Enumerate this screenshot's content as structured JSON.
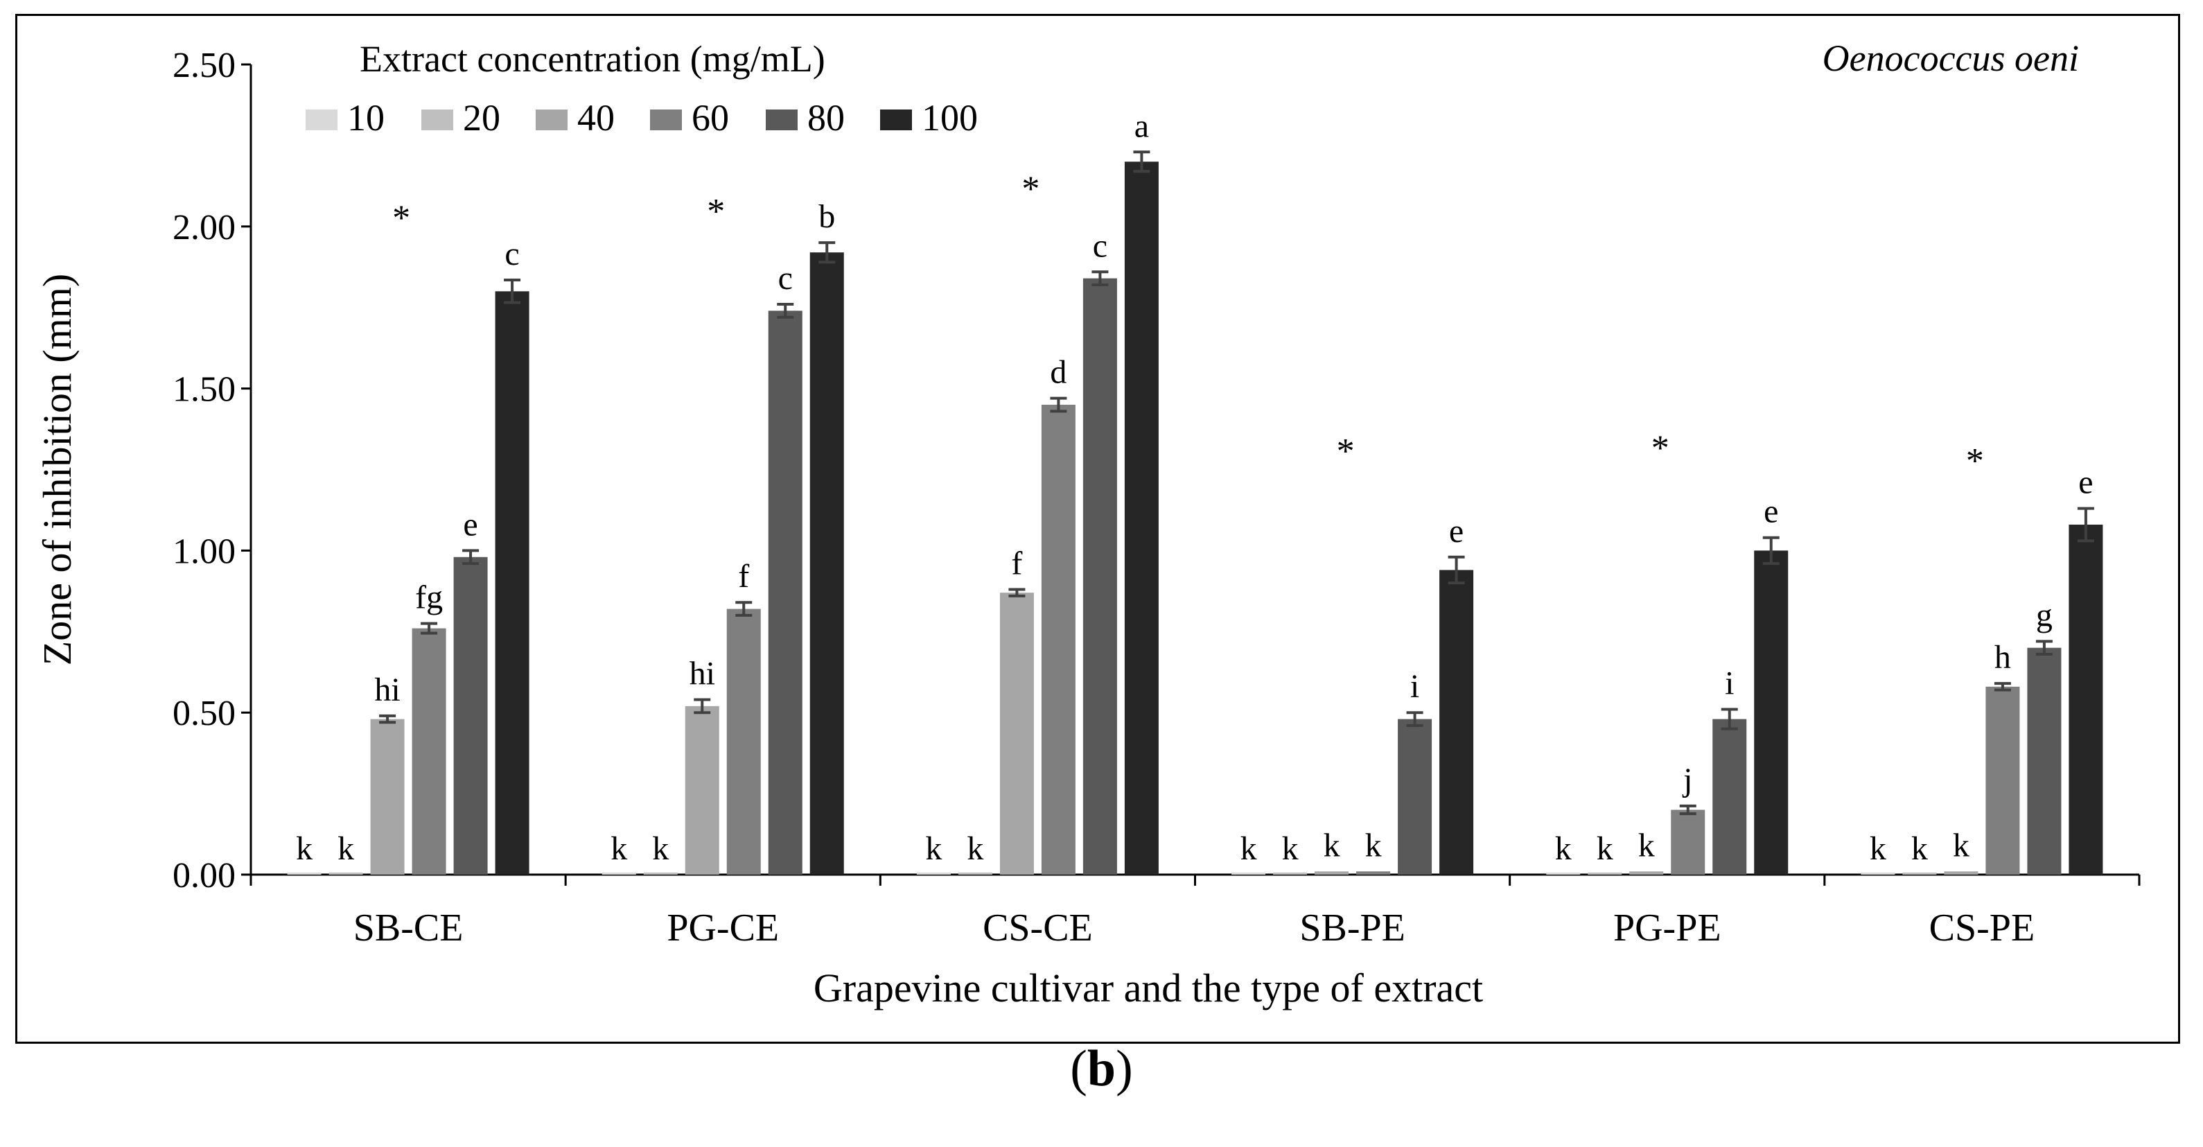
{
  "chart_data": {
    "type": "bar",
    "title": "",
    "organism": "Oenococcus oeni",
    "xlabel": "Grapevine cultivar and the type of extract",
    "ylabel": "Zone of inhibition (mm)",
    "ylim": [
      0,
      2.5
    ],
    "yticks": [
      "0.00",
      "0.50",
      "1.00",
      "1.50",
      "2.00",
      "2.50"
    ],
    "legend_title": "Extract concentration (mg/mL)",
    "legend_position": "top-left",
    "categories": [
      "SB-CE",
      "PG-CE",
      "CS-CE",
      "SB-PE",
      "PG-PE",
      "CS-PE"
    ],
    "series": [
      {
        "name": "10",
        "color": "#d9d9d9",
        "values": [
          0.0,
          0.0,
          0.0,
          0.0,
          0.0,
          0.0
        ],
        "errors": [
          0,
          0,
          0,
          0,
          0,
          0
        ],
        "letters": [
          "k",
          "k",
          "k",
          "k",
          "k",
          "k"
        ]
      },
      {
        "name": "20",
        "color": "#bfbfbf",
        "values": [
          0.0,
          0.0,
          0.0,
          0.0,
          0.0,
          0.0
        ],
        "errors": [
          0,
          0,
          0,
          0,
          0,
          0
        ],
        "letters": [
          "k",
          "k",
          "k",
          "k",
          "k",
          "k"
        ]
      },
      {
        "name": "40",
        "color": "#a6a6a6",
        "values": [
          0.48,
          0.52,
          0.87,
          0.01,
          0.01,
          0.01
        ],
        "errors": [
          0.01,
          0.02,
          0.01,
          0,
          0,
          0
        ],
        "letters": [
          "hi",
          "hi",
          "f",
          "k",
          "k",
          "k"
        ]
      },
      {
        "name": "60",
        "color": "#7f7f7f",
        "values": [
          0.76,
          0.82,
          1.45,
          0.01,
          0.2,
          0.58
        ],
        "errors": [
          0.015,
          0.02,
          0.02,
          0,
          0.012,
          0.01
        ],
        "letters": [
          "fg",
          "f",
          "d",
          "k",
          "j",
          "h"
        ]
      },
      {
        "name": "80",
        "color": "#595959",
        "values": [
          0.98,
          1.74,
          1.84,
          0.48,
          0.48,
          0.7
        ],
        "errors": [
          0.02,
          0.02,
          0.02,
          0.02,
          0.03,
          0.02
        ],
        "letters": [
          "e",
          "c",
          "c",
          "i",
          "i",
          "g"
        ]
      },
      {
        "name": "100",
        "color": "#262626",
        "values": [
          1.8,
          1.92,
          2.2,
          0.94,
          1.0,
          1.08
        ],
        "errors": [
          0.035,
          0.03,
          0.03,
          0.04,
          0.04,
          0.05
        ],
        "letters": [
          "c",
          "b",
          "a",
          "e",
          "e",
          "e"
        ]
      }
    ],
    "annotations": [
      {
        "text": "*",
        "category": "SB-CE",
        "y": 2.05
      },
      {
        "text": "*",
        "category": "PG-CE",
        "y": 2.07
      },
      {
        "text": "*",
        "category": "CS-CE",
        "y": 2.14
      },
      {
        "text": "*",
        "category": "SB-PE",
        "y": 1.33
      },
      {
        "text": "*",
        "category": "PG-PE",
        "y": 1.34
      },
      {
        "text": "*",
        "category": "CS-PE",
        "y": 1.3
      }
    ]
  },
  "panel_label": "b"
}
